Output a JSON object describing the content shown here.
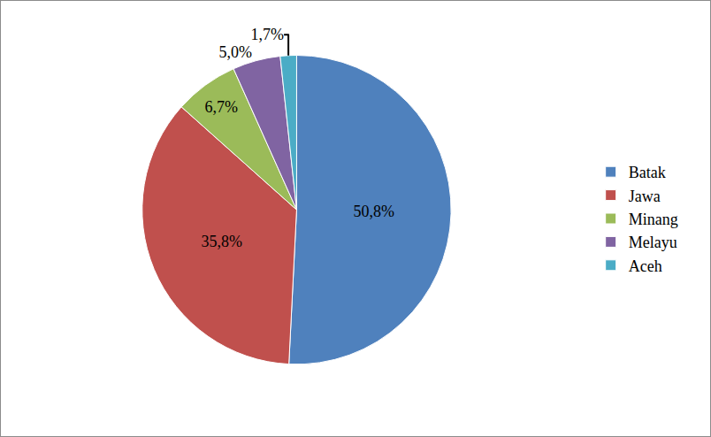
{
  "chart_data": {
    "type": "pie",
    "categories": [
      "Batak",
      "Jawa",
      "Minang",
      "Melayu",
      "Aceh"
    ],
    "values": [
      50.8,
      35.8,
      6.7,
      5.0,
      1.7
    ],
    "value_labels": [
      "50,8%",
      "35,8%",
      "6,7%",
      "5,0%",
      "1,7%"
    ],
    "colors": [
      "#4f81bd",
      "#c0504d",
      "#9bbb59",
      "#8064a2",
      "#4bacc6"
    ],
    "data_labels": true,
    "legend": "right"
  }
}
